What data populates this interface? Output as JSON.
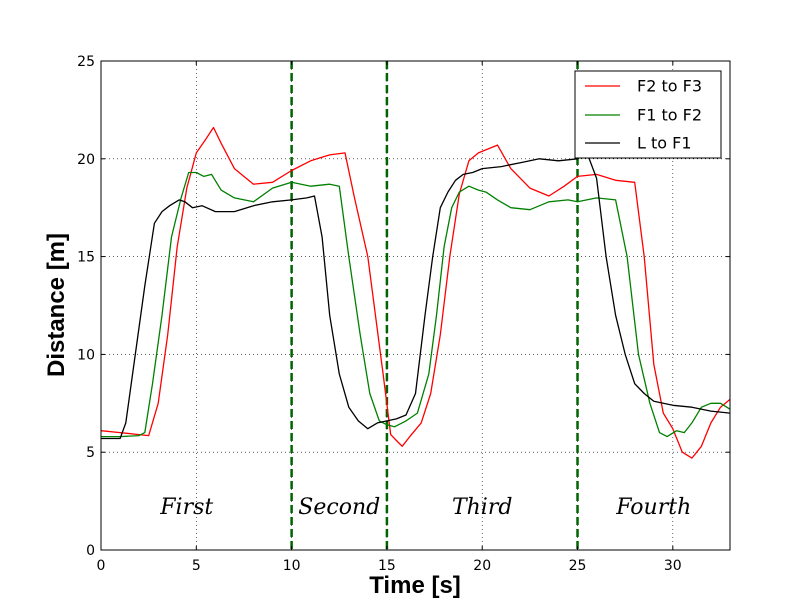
{
  "chart_data": {
    "type": "line",
    "title": "",
    "xlabel": "Time [s]",
    "ylabel": "Distance [m]",
    "xlim": [
      0,
      33
    ],
    "ylim": [
      0,
      25
    ],
    "xticks": [
      0,
      5,
      10,
      15,
      20,
      25,
      30
    ],
    "yticks": [
      0,
      5,
      10,
      15,
      20,
      25
    ],
    "grid": true,
    "legend_position": "top-right",
    "series": [
      {
        "name": "F2 to F3",
        "color": "#ff0000",
        "x": [
          0,
          1,
          2,
          2.5,
          3,
          3.5,
          4,
          4.5,
          5,
          5.5,
          5.9,
          6.3,
          7,
          8,
          9,
          10,
          11,
          12,
          12.8,
          13.3,
          14,
          14.8,
          15.2,
          15.5,
          15.8,
          16.2,
          16.8,
          17.3,
          17.8,
          18.3,
          18.8,
          19.3,
          19.8,
          20.3,
          20.8,
          21.5,
          22.5,
          23.5,
          24.3,
          25,
          26,
          27,
          28,
          28.5,
          29,
          29.5,
          30,
          30.5,
          31,
          31.5,
          32,
          32.5,
          33
        ],
        "y": [
          6.1,
          6.0,
          5.9,
          5.85,
          7.5,
          11,
          15.5,
          18.5,
          20.3,
          21.0,
          21.6,
          20.8,
          19.5,
          18.7,
          18.8,
          19.4,
          19.9,
          20.2,
          20.3,
          18,
          15,
          9,
          5.9,
          5.6,
          5.3,
          5.8,
          6.5,
          8,
          11,
          15,
          18.2,
          19.9,
          20.3,
          20.5,
          20.7,
          19.5,
          18.5,
          18.1,
          18.6,
          19.1,
          19.2,
          18.9,
          18.8,
          15,
          9.5,
          7.0,
          6.2,
          5.0,
          4.7,
          5.3,
          6.5,
          7.3,
          7.7
        ]
      },
      {
        "name": "F1 to F2",
        "color": "#008000",
        "x": [
          0,
          1,
          2,
          2.3,
          2.7,
          3.2,
          3.7,
          4.2,
          4.6,
          5,
          5.4,
          5.8,
          6.3,
          7,
          8,
          9,
          10,
          11,
          12,
          12.5,
          13,
          13.6,
          14.1,
          14.6,
          15,
          15.4,
          16,
          16.6,
          17.2,
          17.6,
          18,
          18.4,
          18.8,
          19.3,
          19.8,
          20.2,
          20.8,
          21.5,
          22.5,
          23.5,
          24.5,
          25,
          26,
          27,
          27.6,
          28.2,
          28.8,
          29.3,
          29.7,
          30.2,
          30.6,
          31,
          31.5,
          32,
          32.5,
          33
        ],
        "y": [
          5.8,
          5.8,
          5.85,
          6.0,
          8.5,
          12,
          16,
          18,
          19.3,
          19.3,
          19.1,
          19.2,
          18.4,
          18.0,
          17.8,
          18.5,
          18.8,
          18.6,
          18.7,
          18.6,
          15,
          11,
          8,
          6.6,
          6.4,
          6.3,
          6.6,
          7.0,
          9,
          12,
          15.5,
          17.5,
          18.3,
          18.6,
          18.4,
          18.3,
          17.9,
          17.5,
          17.4,
          17.8,
          17.9,
          17.8,
          18.0,
          17.9,
          15,
          10,
          7.5,
          6.0,
          5.8,
          6.1,
          6.0,
          6.5,
          7.3,
          7.5,
          7.5,
          7.2
        ]
      },
      {
        "name": "L to F1",
        "color": "#000000",
        "x": [
          0,
          1,
          1.3,
          1.8,
          2.3,
          2.8,
          3.2,
          3.6,
          4.1,
          4.4,
          4.8,
          5.3,
          6,
          7,
          8,
          9,
          10,
          10.8,
          11.2,
          11.6,
          12,
          12.5,
          13,
          13.5,
          14,
          14.5,
          15,
          15.5,
          16,
          16.5,
          17,
          17.4,
          17.8,
          18.2,
          18.6,
          19,
          19.5,
          20,
          21,
          22,
          23,
          24,
          25,
          25.5,
          26,
          26.5,
          27,
          27.5,
          28,
          28.5,
          29,
          29.5,
          30,
          31,
          32,
          33
        ],
        "y": [
          5.7,
          5.7,
          6.5,
          10,
          13.5,
          16.7,
          17.3,
          17.6,
          17.9,
          17.8,
          17.5,
          17.6,
          17.3,
          17.3,
          17.6,
          17.8,
          17.9,
          18.0,
          18.1,
          16,
          12,
          9,
          7.3,
          6.6,
          6.2,
          6.5,
          6.6,
          6.7,
          6.9,
          8,
          12,
          15,
          17.5,
          18.3,
          18.9,
          19.2,
          19.3,
          19.5,
          19.6,
          19.8,
          20.0,
          19.9,
          20.0,
          20.3,
          19.0,
          15,
          12,
          10,
          8.5,
          8.0,
          7.6,
          7.5,
          7.4,
          7.3,
          7.1,
          7.0
        ]
      }
    ],
    "vlines": {
      "x": [
        10,
        15,
        25
      ],
      "color": "#006400",
      "style": "dashed"
    },
    "annotations": [
      {
        "text": "First",
        "x": 4.5,
        "y": 2.2
      },
      {
        "text": "Second",
        "x": 12.5,
        "y": 2.2
      },
      {
        "text": "Third",
        "x": 20.0,
        "y": 2.2
      },
      {
        "text": "Fourth",
        "x": 29.0,
        "y": 2.2
      }
    ]
  }
}
